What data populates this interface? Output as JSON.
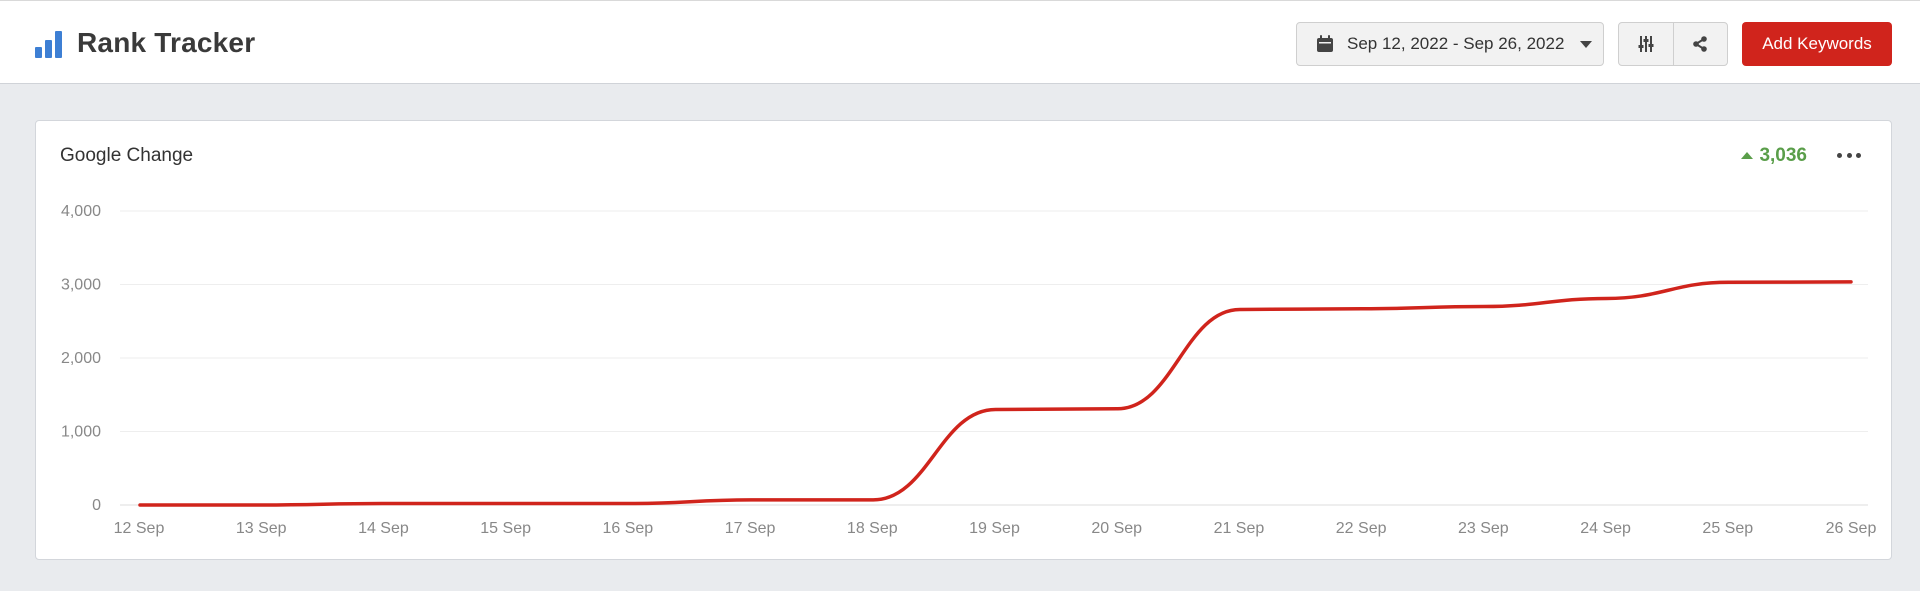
{
  "header": {
    "title": "Rank Tracker",
    "date_range": "Sep 12, 2022 - Sep 26, 2022",
    "add_keywords_label": "Add Keywords"
  },
  "icons": {
    "logo": "bar-chart-icon",
    "date": "calendar-icon",
    "date_toggle": "caret-down-icon",
    "filter": "sliders-icon",
    "share": "share-icon",
    "change": "caret-up-icon",
    "menu": "ellipsis-icon"
  },
  "colors": {
    "accent": "#d0241c",
    "logo_blue": "#3d7fd4",
    "positive": "#5a9e4a",
    "line": "#d0241c"
  },
  "card": {
    "title": "Google Change",
    "change_value": "3,036"
  },
  "chart_data": {
    "type": "line",
    "categories": [
      "12 Sep",
      "13 Sep",
      "14 Sep",
      "15 Sep",
      "16 Sep",
      "17 Sep",
      "18 Sep",
      "19 Sep",
      "20 Sep",
      "21 Sep",
      "22 Sep",
      "23 Sep",
      "24 Sep",
      "25 Sep",
      "26 Sep"
    ],
    "values": [
      0,
      0,
      20,
      20,
      20,
      70,
      70,
      1300,
      1310,
      2660,
      2670,
      2700,
      2810,
      3030,
      3036
    ],
    "y_ticks": [
      0,
      1000,
      2000,
      3000,
      4000
    ],
    "y_tick_labels": [
      "0",
      "1,000",
      "2,000",
      "3,000",
      "4,000"
    ],
    "ylim": [
      0,
      4000
    ],
    "grid": true,
    "smooth": true
  }
}
